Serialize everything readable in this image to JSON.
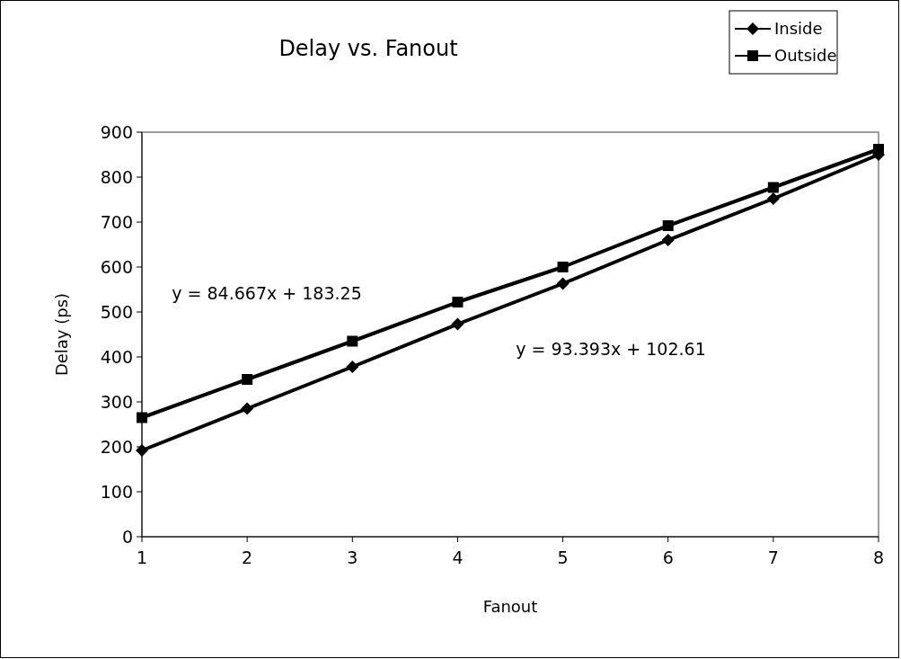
{
  "chart_data": {
    "type": "line",
    "title": "Delay vs. Fanout",
    "xlabel": "Fanout",
    "ylabel": "Delay (ps)",
    "x": [
      1,
      2,
      3,
      4,
      5,
      6,
      7,
      8
    ],
    "series": [
      {
        "name": "Inside",
        "color": "#000000",
        "marker": "diamond",
        "values": [
          192,
          285,
          378,
          473,
          563,
          660,
          752,
          850
        ]
      },
      {
        "name": "Outside",
        "color": "#000000",
        "marker": "square",
        "values": [
          265,
          350,
          435,
          522,
          600,
          692,
          777,
          862
        ]
      }
    ],
    "xlim": [
      1,
      8
    ],
    "xticks": [
      1,
      2,
      3,
      4,
      5,
      6,
      7,
      8
    ],
    "ylim": [
      0,
      900
    ],
    "yticks": [
      0,
      100,
      200,
      300,
      400,
      500,
      600,
      700,
      800,
      900
    ],
    "grid": false,
    "legend": "top right",
    "line_style": "solid",
    "annotations": [
      "y = 84.667x + 183.25",
      "y = 93.393x + 102.61"
    ]
  }
}
